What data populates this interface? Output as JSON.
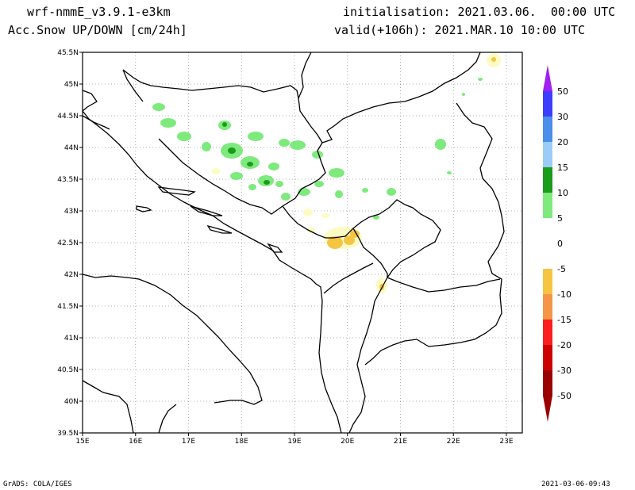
{
  "header": {
    "model": "wrf-nmmE_v3.9.1-e3km",
    "variable": "n Acc.Snow UP/DOWN [cm/24h]",
    "initialisation": "initialisation: 2021.03.06.  00:00 UTC",
    "valid": "valid(+106h): 2021.MAR.10 10:00 UTC"
  },
  "footer": {
    "left": "GrADS: COLA/IGES",
    "right": "2021-03-06-09:43"
  },
  "map": {
    "lon_range": [
      15,
      23.3
    ],
    "lat_range": [
      39.5,
      45.5
    ],
    "x_ticks": [
      "15E",
      "16E",
      "17E",
      "18E",
      "19E",
      "20E",
      "21E",
      "22E",
      "23E"
    ],
    "y_ticks": [
      "39.5N",
      "40N",
      "40.5N",
      "41N",
      "41.5N",
      "42N",
      "42.5N",
      "43N",
      "43.5N",
      "44N",
      "44.5N",
      "45N",
      "45.5N"
    ],
    "grid": "dotted"
  },
  "colorbar": {
    "labels": [
      "50",
      "30",
      "20",
      "15",
      "10",
      "5",
      "0",
      "-5",
      "-10",
      "-15",
      "-20",
      "-30",
      "-50"
    ],
    "colors": [
      "#9f1fef",
      "#3c3cff",
      "#4a8fea",
      "#9bccf6",
      "#1a9b1a",
      "#7eea7e",
      "#ffffff",
      "#fdfbc4",
      "#f5c542",
      "#f59547",
      "#fa1e1e",
      "#cc0000",
      "#9b0000"
    ]
  }
}
